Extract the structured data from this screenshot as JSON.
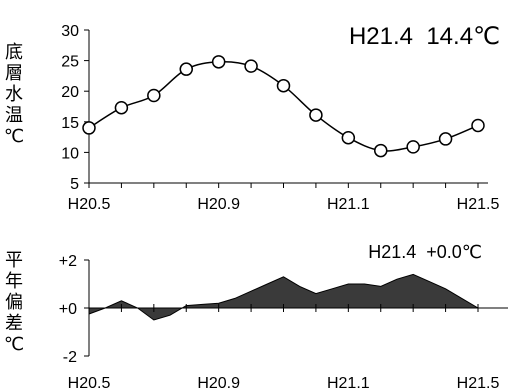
{
  "chart_data": [
    {
      "type": "line",
      "title": "H21.4  14.4℃",
      "ylabel_chars": [
        "底",
        "層",
        "水",
        "温",
        "℃"
      ],
      "x_tick_labels": [
        "H20.5",
        "H20.9",
        "H21.1",
        "H21.5"
      ],
      "x_tick_positions": [
        0,
        4,
        8,
        12
      ],
      "x": [
        0,
        1,
        2,
        3,
        4,
        5,
        6,
        7,
        8,
        9,
        10,
        11,
        12
      ],
      "values": [
        14.0,
        17.3,
        19.3,
        23.6,
        24.8,
        24.1,
        20.9,
        16.1,
        12.4,
        10.3,
        10.9,
        12.2,
        14.4
      ],
      "ylim": [
        5,
        30
      ],
      "y_ticks": [
        5,
        10,
        15,
        20,
        25,
        30
      ],
      "marker": "open-circle",
      "grid": false
    },
    {
      "type": "area",
      "title": "H21.4  +0.0℃",
      "ylabel_chars": [
        "平",
        "年",
        "偏",
        "差",
        "℃"
      ],
      "x_tick_labels": [
        "H20.5",
        "H20.9",
        "H21.1",
        "H21.5"
      ],
      "x_tick_positions": [
        0,
        4,
        8,
        12
      ],
      "x": [
        0,
        0.5,
        1,
        1.5,
        2,
        2.5,
        3,
        3.5,
        4,
        4.5,
        5,
        5.5,
        6,
        6.5,
        7,
        7.5,
        8,
        8.5,
        9,
        9.5,
        10,
        10.5,
        11,
        11.5,
        12
      ],
      "values": [
        -0.25,
        0.0,
        0.3,
        0.0,
        -0.5,
        -0.3,
        0.1,
        0.15,
        0.2,
        0.4,
        0.7,
        1.0,
        1.3,
        0.9,
        0.6,
        0.8,
        1.0,
        1.0,
        0.9,
        1.2,
        1.4,
        1.1,
        0.8,
        0.4,
        0.0
      ],
      "ylim": [
        -2,
        2
      ],
      "y_ticks": [
        -2,
        0,
        2
      ],
      "y_tick_labels": [
        "-2",
        "+0",
        "+2"
      ],
      "fill_color": "#3a3a3a",
      "grid": false
    }
  ]
}
